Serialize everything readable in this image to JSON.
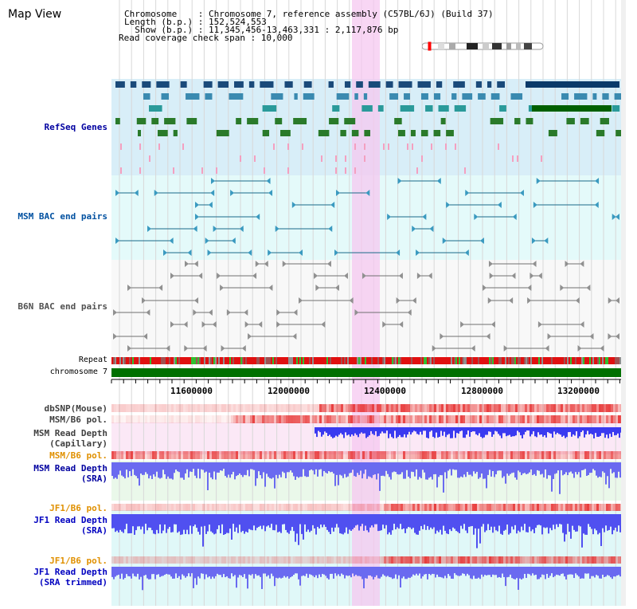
{
  "header": {
    "title": "Map View",
    "chromosome_line": "Chromosome    : Chromosome 7, reference assembly (C57BL/6J) (Build 37)",
    "length_line": "Length (b.p.) : 152,524,553",
    "show_line": "  Show (b.p.) : 11,345,456-13,463,331 : 2,117,876 bp",
    "coverage_line": "Read coverage check span : 10,000"
  },
  "tracks": {
    "refseq": "RefSeq Genes",
    "msm_bac": "MSM BAC end pairs",
    "b6n_bac": "B6N BAC end pairs",
    "repeat": "Repeat",
    "chromosome": "chromosome 7",
    "dbsnp": "dbSNP(Mouse)",
    "msm_pol_1": "MSM/B6 pol.",
    "msm_depth_cap_1": "MSM Read Depth",
    "msm_depth_cap_2": "(Capillary)",
    "msm_pol_2": "MSM/B6 pol.",
    "msm_depth_sra_1": "MSM Read Depth",
    "msm_depth_sra_2": "(SRA)",
    "jf1_pol_1": "JF1/B6 pol.",
    "jf1_depth_sra_1": "JF1 Read Depth",
    "jf1_depth_sra_2": "(SRA)",
    "jf1_pol_2": "JF1/B6 pol.",
    "jf1_depth_trim_1": "JF1 Read Depth",
    "jf1_depth_trim_2": "(SRA trimmed)"
  },
  "axis": {
    "ticks": [
      "11600000",
      "12000000",
      "12400000",
      "12800000",
      "13200000"
    ]
  },
  "colors": {
    "refseq_band": "#d8eef8",
    "msm_band": "#e4fafa",
    "highlight": "#f8d8f4",
    "chrom_green": "#007000",
    "depth_blue": "#5050f0",
    "pol_red": "#f08080",
    "msm_label": "#0050a0",
    "refseq_label": "#0000a0",
    "jf1_label": "#0000c0",
    "orange_label": "#e09000"
  }
}
